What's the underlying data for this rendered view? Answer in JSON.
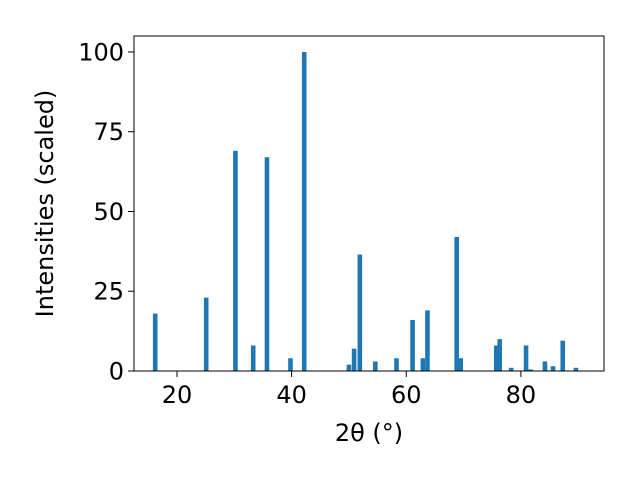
{
  "chart_data": {
    "type": "bar",
    "title": "",
    "xlabel": "2θ (°)",
    "ylabel": "Intensities (scaled)",
    "xlim": [
      12.5,
      94.5
    ],
    "ylim": [
      0,
      105
    ],
    "x_ticks": [
      20,
      40,
      60,
      80
    ],
    "y_ticks": [
      0,
      25,
      50,
      75,
      100
    ],
    "bar_width": 0.8,
    "grid": false,
    "color": "#1f77b4",
    "x": [
      16.2,
      25.1,
      30.2,
      33.3,
      35.7,
      39.8,
      42.2,
      50.0,
      50.9,
      51.9,
      54.6,
      58.3,
      61.1,
      62.9,
      63.7,
      68.8,
      69.5,
      75.7,
      76.3,
      78.3,
      80.9,
      81.7,
      84.2,
      85.6,
      87.3,
      89.6
    ],
    "values": [
      18,
      23,
      69,
      8,
      67,
      4,
      100,
      2,
      7,
      36.5,
      3,
      4,
      16,
      4,
      19,
      42,
      4,
      8,
      10,
      1,
      8,
      0.5,
      3,
      1.5,
      9.5,
      1
    ]
  }
}
